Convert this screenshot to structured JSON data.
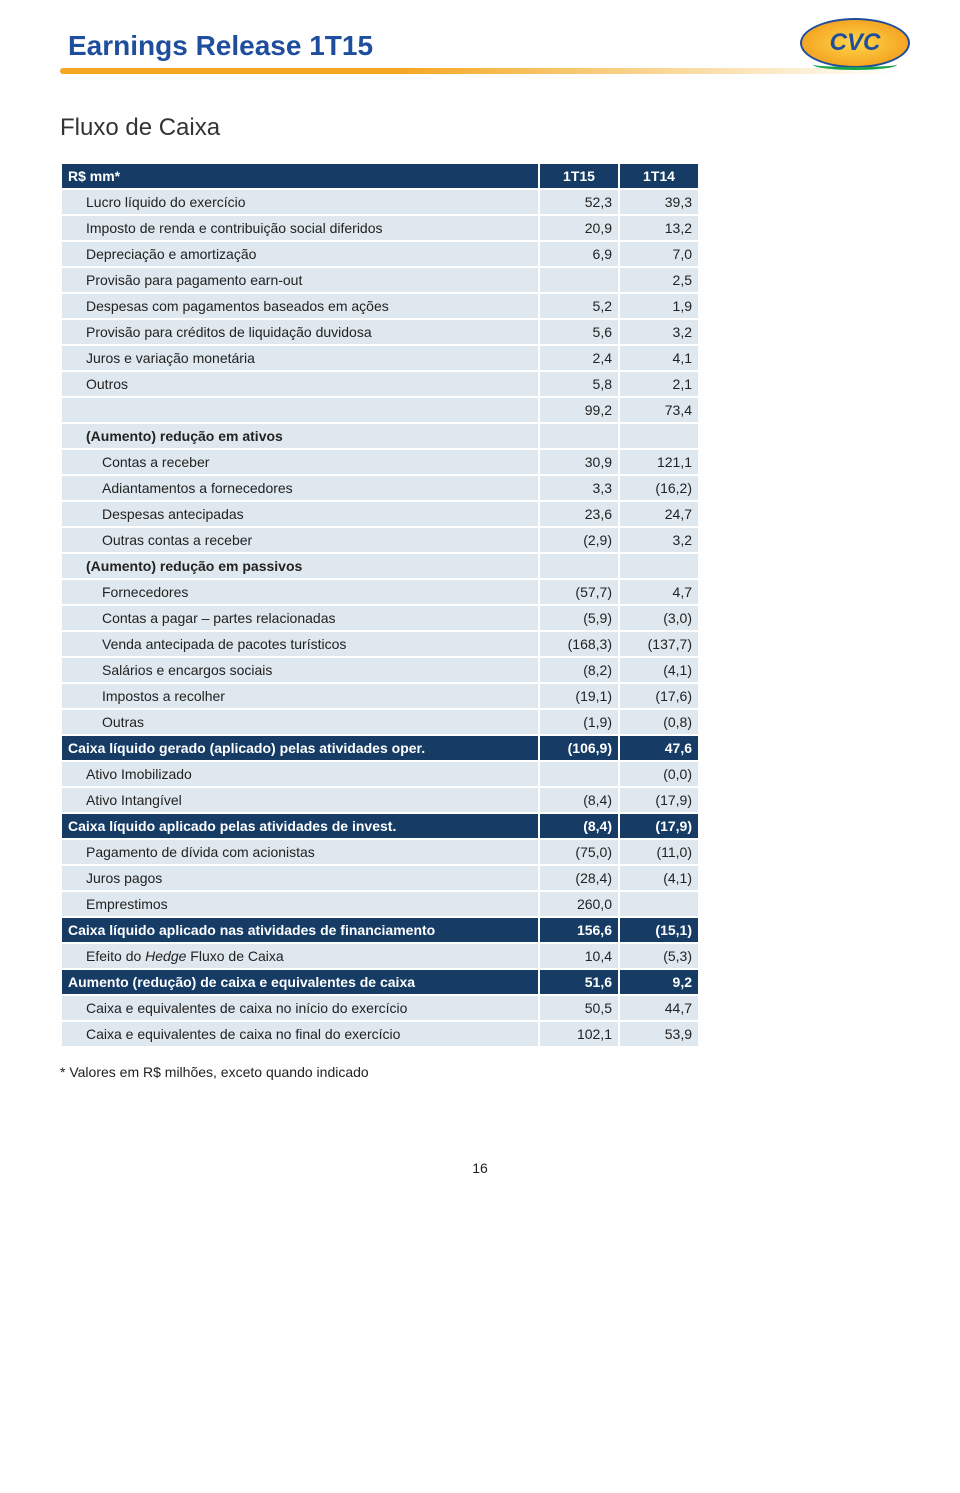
{
  "header": {
    "title": "Earnings Release 1T15",
    "logo_text": "CVC"
  },
  "section_title": "Fluxo de Caixa",
  "table": {
    "columns": [
      "R$ mm*",
      "1T15",
      "1T14"
    ],
    "rows": [
      {
        "type": "light",
        "indent": 1,
        "label": "Lucro líquido do exercício",
        "c1": "52,3",
        "c2": "39,3"
      },
      {
        "type": "light",
        "indent": 1,
        "label": "Imposto de renda e contribuição social diferidos",
        "c1": "20,9",
        "c2": "13,2"
      },
      {
        "type": "light",
        "indent": 1,
        "label": "Depreciação e amortização",
        "c1": "6,9",
        "c2": "7,0"
      },
      {
        "type": "light",
        "indent": 1,
        "label": "Provisão para pagamento earn-out",
        "c1": "",
        "c2": "2,5"
      },
      {
        "type": "light",
        "indent": 1,
        "label": "Despesas com pagamentos baseados em ações",
        "c1": "5,2",
        "c2": "1,9"
      },
      {
        "type": "light",
        "indent": 1,
        "label": "Provisão para créditos de liquidação duvidosa",
        "c1": "5,6",
        "c2": "3,2"
      },
      {
        "type": "light",
        "indent": 1,
        "label": "Juros e variação monetária",
        "c1": "2,4",
        "c2": "4,1"
      },
      {
        "type": "light",
        "indent": 1,
        "label": "Outros",
        "c1": "5,8",
        "c2": "2,1"
      },
      {
        "type": "light",
        "indent": 0,
        "label": "",
        "c1": "99,2",
        "c2": "73,4"
      },
      {
        "type": "light",
        "indent": 1,
        "bold": true,
        "label": "(Aumento) redução em ativos",
        "c1": "",
        "c2": ""
      },
      {
        "type": "light",
        "indent": 2,
        "label": "Contas a receber",
        "c1": "30,9",
        "c2": "121,1"
      },
      {
        "type": "light",
        "indent": 2,
        "label": "Adiantamentos a fornecedores",
        "c1": "3,3",
        "c2": "(16,2)"
      },
      {
        "type": "light",
        "indent": 2,
        "label": "Despesas antecipadas",
        "c1": "23,6",
        "c2": "24,7"
      },
      {
        "type": "light",
        "indent": 2,
        "label": "Outras contas a receber",
        "c1": "(2,9)",
        "c2": "3,2"
      },
      {
        "type": "light",
        "indent": 1,
        "bold": true,
        "label": "(Aumento) redução em passivos",
        "c1": "",
        "c2": ""
      },
      {
        "type": "light",
        "indent": 2,
        "label": "Fornecedores",
        "c1": "(57,7)",
        "c2": "4,7"
      },
      {
        "type": "light",
        "indent": 2,
        "label": "Contas a pagar – partes relacionadas",
        "c1": "(5,9)",
        "c2": "(3,0)"
      },
      {
        "type": "light",
        "indent": 2,
        "label": "Venda antecipada de pacotes turísticos",
        "c1": "(168,3)",
        "c2": "(137,7)"
      },
      {
        "type": "light",
        "indent": 2,
        "label": "Salários e encargos sociais",
        "c1": "(8,2)",
        "c2": "(4,1)"
      },
      {
        "type": "light",
        "indent": 2,
        "label": "Impostos a recolher",
        "c1": "(19,1)",
        "c2": "(17,6)"
      },
      {
        "type": "light",
        "indent": 2,
        "label": "Outras",
        "c1": "(1,9)",
        "c2": "(0,8)"
      },
      {
        "type": "dark",
        "indent": 0,
        "label": "Caixa líquido gerado (aplicado) pelas atividades oper.",
        "c1": "(106,9)",
        "c2": "47,6"
      },
      {
        "type": "light",
        "indent": 1,
        "label": "Ativo Imobilizado",
        "c1": "",
        "c2": "(0,0)"
      },
      {
        "type": "light",
        "indent": 1,
        "label": "Ativo Intangível",
        "c1": "(8,4)",
        "c2": "(17,9)"
      },
      {
        "type": "dark",
        "indent": 0,
        "label": "Caixa líquido aplicado pelas atividades de invest.",
        "c1": "(8,4)",
        "c2": "(17,9)"
      },
      {
        "type": "light",
        "indent": 1,
        "label": "Pagamento de dívida com acionistas",
        "c1": "(75,0)",
        "c2": "(11,0)"
      },
      {
        "type": "light",
        "indent": 1,
        "label": "Juros pagos",
        "c1": "(28,4)",
        "c2": "(4,1)"
      },
      {
        "type": "light",
        "indent": 1,
        "label": "Emprestimos",
        "c1": "260,0",
        "c2": ""
      },
      {
        "type": "dark",
        "indent": 0,
        "label": "Caixa líquido aplicado nas atividades de financiamento",
        "c1": "156,6",
        "c2": "(15,1)"
      },
      {
        "type": "light",
        "indent": 1,
        "label_parts": [
          {
            "text": "Efeito do ",
            "italic": false
          },
          {
            "text": "Hedge",
            "italic": true
          },
          {
            "text": " Fluxo de Caixa",
            "italic": false
          }
        ],
        "c1": "10,4",
        "c2": "(5,3)"
      },
      {
        "type": "dark",
        "indent": 0,
        "label": "Aumento (redução) de caixa e equivalentes de caixa",
        "c1": "51,6",
        "c2": "9,2"
      },
      {
        "type": "light",
        "indent": 1,
        "label": "Caixa e equivalentes de caixa no início do exercício",
        "c1": "50,5",
        "c2": "44,7"
      },
      {
        "type": "light",
        "indent": 1,
        "label": "Caixa e equivalentes de caixa no final do exercício",
        "c1": "102,1",
        "c2": "53,9"
      }
    ]
  },
  "footnote": "* Valores em R$ milhões, exceto quando indicado",
  "page_number": "16",
  "colors": {
    "header_text": "#1f4e9c",
    "dark_row_bg": "#163c66",
    "light_row_bg": "#dfe8ee",
    "accent_orange": "#f5a623"
  }
}
